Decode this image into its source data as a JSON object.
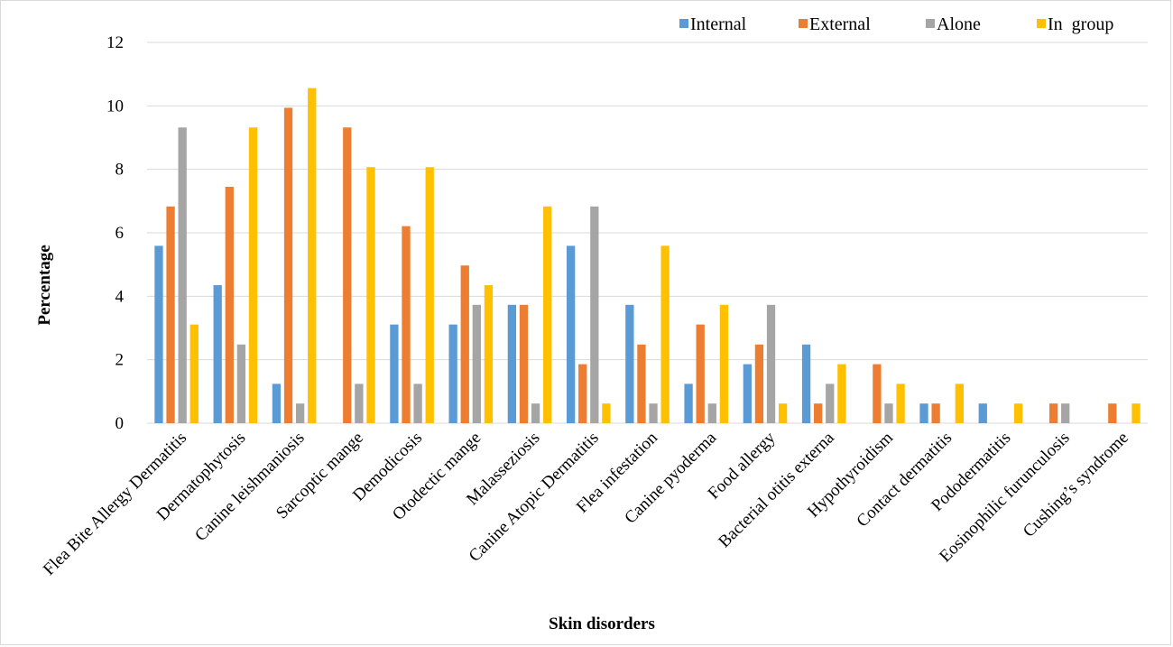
{
  "chart_data": {
    "type": "bar",
    "title": "",
    "xlabel": "Skin disorders",
    "ylabel": "Percentage",
    "ylim": [
      0,
      12
    ],
    "yticks": [
      0,
      2,
      4,
      6,
      8,
      10,
      12
    ],
    "grid": true,
    "legend_position": "top-right",
    "categories": [
      "Flea Bite Allergy Dermatitis",
      "Dermatophytosis",
      "Canine leishmaniosis",
      "Sarcoptic mange",
      "Demodicosis",
      "Otodectic mange",
      "Malasseziosis",
      "Canine Atopic Dermatitis",
      "Flea infestation",
      "Canine pyoderma",
      "Food allergy",
      "Bacterial otitis externa",
      "Hypothyroidism",
      "Contact dermatitis",
      "Pododermatitis",
      "Eosinophilic furunculosis",
      "Cushing’s syndrome"
    ],
    "series": [
      {
        "name": "Internal",
        "color": "#5b9bd5",
        "values": [
          5.59,
          4.35,
          1.24,
          0,
          3.11,
          3.11,
          3.73,
          5.59,
          3.73,
          1.24,
          1.86,
          2.48,
          0,
          0.62,
          0.62,
          0,
          0
        ]
      },
      {
        "name": "External",
        "color": "#ed7d31",
        "values": [
          6.83,
          7.45,
          9.94,
          9.32,
          6.21,
          4.97,
          3.73,
          1.86,
          2.48,
          3.11,
          2.48,
          0.62,
          1.86,
          0.62,
          0,
          0.62,
          0.62
        ]
      },
      {
        "name": "Alone",
        "color": "#a5a5a5",
        "values": [
          9.32,
          2.48,
          0.62,
          1.24,
          1.24,
          3.73,
          0.62,
          6.83,
          0.62,
          0.62,
          3.73,
          1.24,
          0.62,
          0,
          0,
          0.62,
          0
        ]
      },
      {
        "name": "In  group",
        "color": "#ffc000",
        "values": [
          3.11,
          9.32,
          10.56,
          8.07,
          8.07,
          4.35,
          6.83,
          0.62,
          5.59,
          3.73,
          0.62,
          1.86,
          1.24,
          1.24,
          0.62,
          0,
          0.62
        ]
      }
    ]
  }
}
